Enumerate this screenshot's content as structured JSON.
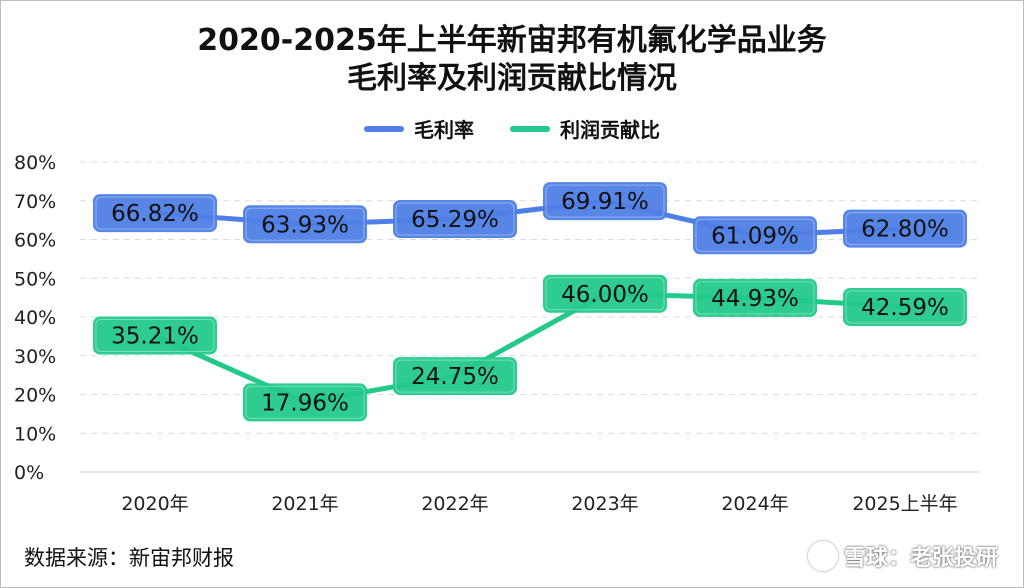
{
  "chart_data": {
    "type": "line",
    "title_lines": [
      "2020-2025年上半年新宙邦有机氟化学品业务",
      "毛利率及利润贡献比情况"
    ],
    "categories": [
      "2020年",
      "2021年",
      "2022年",
      "2023年",
      "2024年",
      "2025上半年"
    ],
    "y_ticks": [
      "0%",
      "10%",
      "20%",
      "30%",
      "40%",
      "50%",
      "60%",
      "70%",
      "80%"
    ],
    "ylim": [
      0,
      80
    ],
    "grid": true,
    "legend_position": "top-center",
    "series": [
      {
        "name": "毛利率",
        "values": [
          66.82,
          63.93,
          65.29,
          69.91,
          61.09,
          62.8
        ],
        "labels": [
          "66.82%",
          "63.93%",
          "65.29%",
          "69.91%",
          "61.09%",
          "62.80%"
        ],
        "color": "#4f7fe6"
      },
      {
        "name": "利润贡献比",
        "values": [
          35.21,
          17.96,
          24.75,
          46.0,
          44.93,
          42.59
        ],
        "labels": [
          "35.21%",
          "17.96%",
          "24.75%",
          "46.00%",
          "44.93%",
          "42.59%"
        ],
        "color": "#23c98a"
      }
    ]
  },
  "footer": {
    "source": "数据来源：新宙邦财报",
    "watermark": "雪球：老张投研"
  }
}
